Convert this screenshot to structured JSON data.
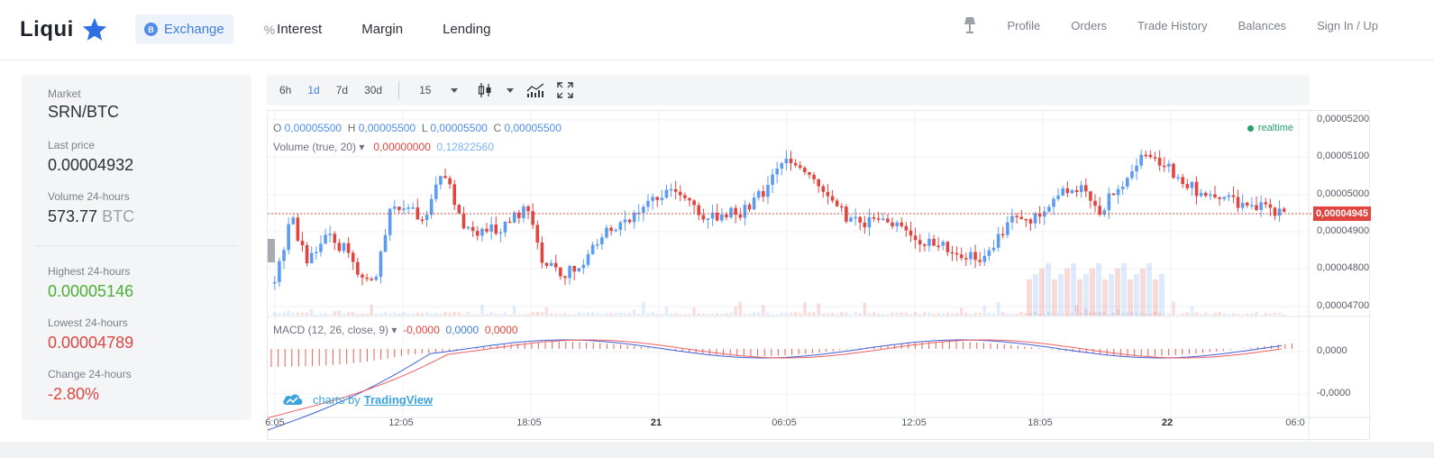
{
  "brand": {
    "name": "Liqui",
    "star_color": "#2f6fe3"
  },
  "nav": {
    "items": [
      {
        "label": "Exchange",
        "badge": "B",
        "active": true
      },
      {
        "label": "Interest",
        "icon": "percent-icon"
      },
      {
        "label": "Margin"
      },
      {
        "label": "Lending"
      }
    ]
  },
  "right_nav": {
    "items": [
      "Profile",
      "Orders",
      "Trade History",
      "Balances",
      "Sign In / Up"
    ]
  },
  "market": {
    "market_label": "Market",
    "market_value": "SRN/BTC",
    "last_price_label": "Last price",
    "last_price_value": "0.00004932",
    "volume_label": "Volume 24-hours",
    "volume_value": "573.77",
    "volume_unit": "BTC",
    "high_label": "Highest 24-hours",
    "high_value": "0.00005146",
    "low_label": "Lowest 24-hours",
    "low_value": "0.00004789",
    "change_label": "Change 24-hours",
    "change_value": "-2.80%"
  },
  "toolbar": {
    "ranges": [
      "6h",
      "1d",
      "7d",
      "30d"
    ],
    "active_range": "1d",
    "interval": "15"
  },
  "chart": {
    "ohlc_legend": {
      "o": "0,00005500",
      "h": "0,00005500",
      "l": "0,00005500",
      "c": "0,00005500"
    },
    "volume_legend": {
      "name": "Volume (true, 20)",
      "v1": "0,00000000",
      "v2": "0,12822560"
    },
    "macd_legend": {
      "name": "MACD (12, 26, close, 9)",
      "v1": "-0,0000",
      "v2": "0,0000",
      "v3": "0,0000"
    },
    "realtime_label": "realtime",
    "current_price_tag": "0,00004945",
    "price_axis": [
      "0,00005200",
      "0,00005100",
      "0,00005000",
      "0,00004900",
      "0,00004800",
      "0,00004700"
    ],
    "macd_axis": [
      "0,0000",
      "-0,0000"
    ],
    "time_axis": [
      {
        "label": "6:05",
        "bold": false
      },
      {
        "label": "12:05",
        "bold": false
      },
      {
        "label": "18:05",
        "bold": false
      },
      {
        "label": "21",
        "bold": true
      },
      {
        "label": "06:05",
        "bold": false
      },
      {
        "label": "12:05",
        "bold": false
      },
      {
        "label": "18:05",
        "bold": false
      },
      {
        "label": "22",
        "bold": true
      },
      {
        "label": "06:0",
        "bold": false
      }
    ],
    "watermark_text": "charts by",
    "watermark_link": "TradingView",
    "colors": {
      "up": "#5b9cf2",
      "down": "#e0453f",
      "macd": "#3f5fd8",
      "signal": "#f06060"
    }
  }
}
